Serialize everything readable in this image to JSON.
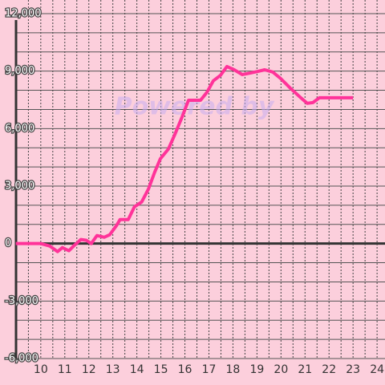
{
  "chart_data": {
    "type": "line",
    "watermark": "Powered by",
    "x": [
      8.96,
      10,
      10.37,
      10.7,
      10.9,
      11.17,
      11.37,
      11.67,
      11.9,
      12.1,
      12.34,
      12.64,
      12.87,
      13.14,
      13.3,
      13.64,
      13.9,
      14.2,
      14.48,
      14.74,
      14.98,
      15.31,
      15.58,
      15.88,
      16.15,
      16.65,
      16.92,
      17.18,
      17.48,
      17.75,
      18.05,
      18.39,
      18.72,
      19.05,
      19.32,
      19.66,
      19.99,
      20.39,
      20.79,
      21.09,
      21.33,
      21.6,
      23
    ],
    "series": [
      {
        "color": "#ff3399",
        "values": [
          0,
          0,
          -125,
          -420,
          -210,
          -375,
          -125,
          210,
          170,
          0,
          420,
          330,
          460,
          920,
          1250,
          1250,
          1920,
          2170,
          2840,
          3720,
          4430,
          4930,
          5690,
          6600,
          7480,
          7480,
          7900,
          8490,
          8780,
          9240,
          9070,
          8820,
          8900,
          8990,
          9070,
          8950,
          8610,
          8110,
          7650,
          7320,
          7360,
          7610,
          7610
        ]
      }
    ],
    "xlim": [
      8.97,
      24.33
    ],
    "xticks": [
      10,
      11,
      12,
      13,
      14,
      15,
      16,
      17,
      18,
      19,
      20,
      21,
      22,
      23,
      24
    ],
    "ylim": [
      -6000,
      12000
    ],
    "yticks": [
      {
        "value": -6000,
        "label": "-6,000"
      },
      {
        "value": -3000,
        "label": "-3,000"
      },
      0,
      {
        "value": 3000,
        "label": "3,000"
      },
      {
        "value": 6000,
        "label": "6,000"
      },
      {
        "value": 9000,
        "label": "9,000"
      },
      {
        "value": 12000,
        "label": "12,000"
      }
    ],
    "grid": true
  }
}
